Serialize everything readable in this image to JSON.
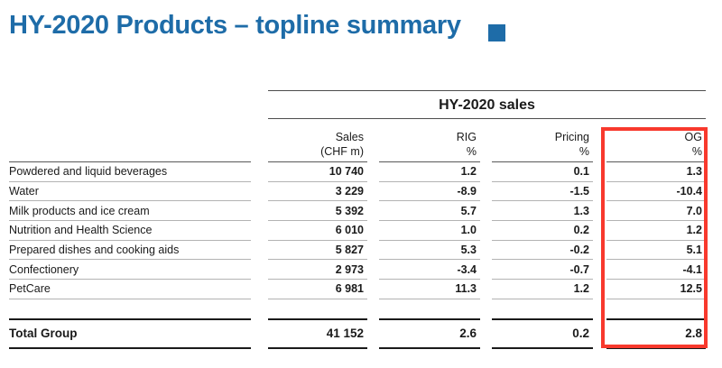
{
  "title": "HY-2020 Products – topline summary",
  "table": {
    "group_header": "HY-2020 sales",
    "columns": [
      {
        "label": "Sales",
        "sub": "(CHF m)"
      },
      {
        "label": "RIG",
        "sub": "%"
      },
      {
        "label": "Pricing",
        "sub": "%"
      },
      {
        "label": "OG",
        "sub": "%"
      }
    ],
    "rows": [
      {
        "label": "Powdered and liquid beverages",
        "sales": "10 740",
        "rig": "1.2",
        "pricing": "0.1",
        "og": "1.3"
      },
      {
        "label": "Water",
        "sales": "3 229",
        "rig": "-8.9",
        "pricing": "-1.5",
        "og": "-10.4"
      },
      {
        "label": "Milk products and ice cream",
        "sales": "5 392",
        "rig": "5.7",
        "pricing": "1.3",
        "og": "7.0"
      },
      {
        "label": "Nutrition and Health Science",
        "sales": "6 010",
        "rig": "1.0",
        "pricing": "0.2",
        "og": "1.2"
      },
      {
        "label": "Prepared dishes and cooking aids",
        "sales": "5 827",
        "rig": "5.3",
        "pricing": "-0.2",
        "og": "5.1"
      },
      {
        "label": "Confectionery",
        "sales": "2 973",
        "rig": "-3.4",
        "pricing": "-0.7",
        "og": "-4.1"
      },
      {
        "label": "PetCare",
        "sales": "6 981",
        "rig": "11.3",
        "pricing": "1.2",
        "og": "12.5"
      }
    ],
    "total": {
      "label": "Total Group",
      "sales": "41 152",
      "rig": "2.6",
      "pricing": "0.2",
      "og": "2.8"
    }
  },
  "colors": {
    "title_blue": "#1e6ca8",
    "highlight_red": "#f8392d"
  }
}
